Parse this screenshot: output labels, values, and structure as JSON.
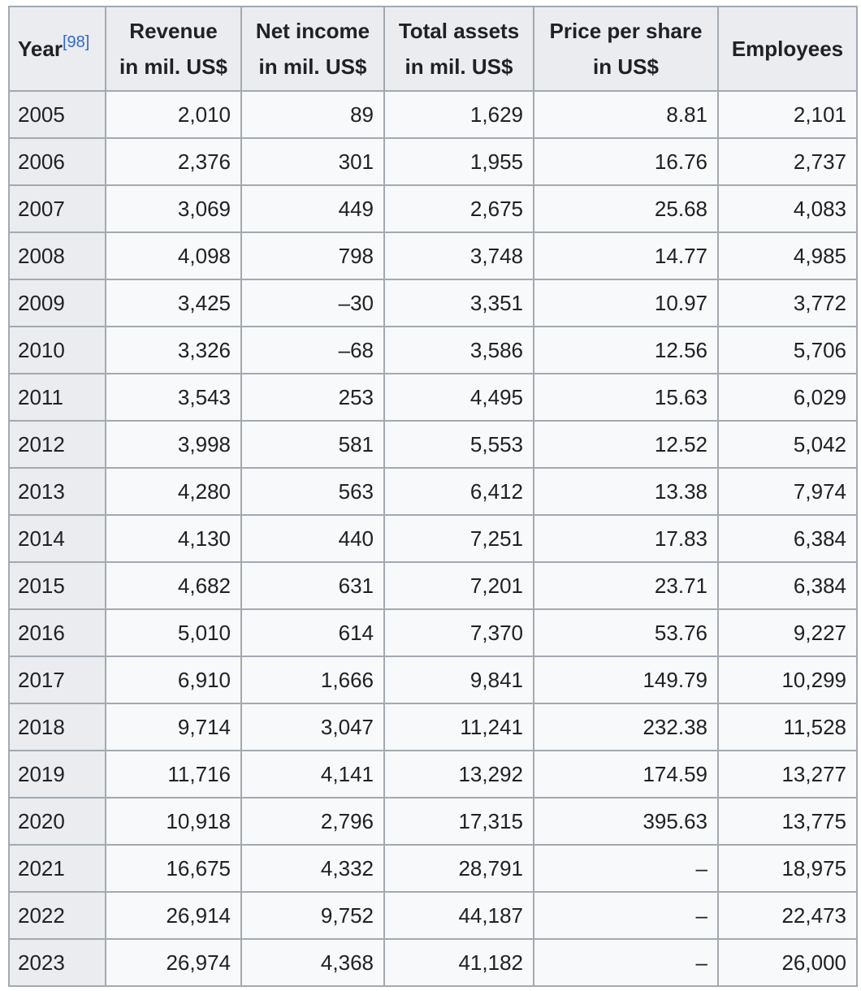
{
  "columns": {
    "year": "Year",
    "year_ref": "[98]",
    "revenue_line1": "Revenue",
    "revenue_line2": "in mil. US$",
    "net_line1": "Net income",
    "net_line2": "in mil. US$",
    "assets_line1": "Total assets",
    "assets_line2": "in mil. US$",
    "price_line1": "Price per share",
    "price_line2": "in US$",
    "employees": "Employees"
  },
  "rows": [
    {
      "year": "2005",
      "revenue": "2,010",
      "net_income": "89",
      "total_assets": "1,629",
      "price": "8.81",
      "employees": "2,101"
    },
    {
      "year": "2006",
      "revenue": "2,376",
      "net_income": "301",
      "total_assets": "1,955",
      "price": "16.76",
      "employees": "2,737"
    },
    {
      "year": "2007",
      "revenue": "3,069",
      "net_income": "449",
      "total_assets": "2,675",
      "price": "25.68",
      "employees": "4,083"
    },
    {
      "year": "2008",
      "revenue": "4,098",
      "net_income": "798",
      "total_assets": "3,748",
      "price": "14.77",
      "employees": "4,985"
    },
    {
      "year": "2009",
      "revenue": "3,425",
      "net_income": "–30",
      "total_assets": "3,351",
      "price": "10.97",
      "employees": "3,772"
    },
    {
      "year": "2010",
      "revenue": "3,326",
      "net_income": "–68",
      "total_assets": "3,586",
      "price": "12.56",
      "employees": "5,706"
    },
    {
      "year": "2011",
      "revenue": "3,543",
      "net_income": "253",
      "total_assets": "4,495",
      "price": "15.63",
      "employees": "6,029"
    },
    {
      "year": "2012",
      "revenue": "3,998",
      "net_income": "581",
      "total_assets": "5,553",
      "price": "12.52",
      "employees": "5,042"
    },
    {
      "year": "2013",
      "revenue": "4,280",
      "net_income": "563",
      "total_assets": "6,412",
      "price": "13.38",
      "employees": "7,974"
    },
    {
      "year": "2014",
      "revenue": "4,130",
      "net_income": "440",
      "total_assets": "7,251",
      "price": "17.83",
      "employees": "6,384"
    },
    {
      "year": "2015",
      "revenue": "4,682",
      "net_income": "631",
      "total_assets": "7,201",
      "price": "23.71",
      "employees": "6,384"
    },
    {
      "year": "2016",
      "revenue": "5,010",
      "net_income": "614",
      "total_assets": "7,370",
      "price": "53.76",
      "employees": "9,227"
    },
    {
      "year": "2017",
      "revenue": "6,910",
      "net_income": "1,666",
      "total_assets": "9,841",
      "price": "149.79",
      "employees": "10,299"
    },
    {
      "year": "2018",
      "revenue": "9,714",
      "net_income": "3,047",
      "total_assets": "11,241",
      "price": "232.38",
      "employees": "11,528"
    },
    {
      "year": "2019",
      "revenue": "11,716",
      "net_income": "4,141",
      "total_assets": "13,292",
      "price": "174.59",
      "employees": "13,277"
    },
    {
      "year": "2020",
      "revenue": "10,918",
      "net_income": "2,796",
      "total_assets": "17,315",
      "price": "395.63",
      "employees": "13,775"
    },
    {
      "year": "2021",
      "revenue": "16,675",
      "net_income": "4,332",
      "total_assets": "28,791",
      "price": "–",
      "employees": "18,975"
    },
    {
      "year": "2022",
      "revenue": "26,914",
      "net_income": "9,752",
      "total_assets": "44,187",
      "price": "–",
      "employees": "22,473"
    },
    {
      "year": "2023",
      "revenue": "26,974",
      "net_income": "4,368",
      "total_assets": "41,182",
      "price": "–",
      "employees": "26,000"
    }
  ]
}
